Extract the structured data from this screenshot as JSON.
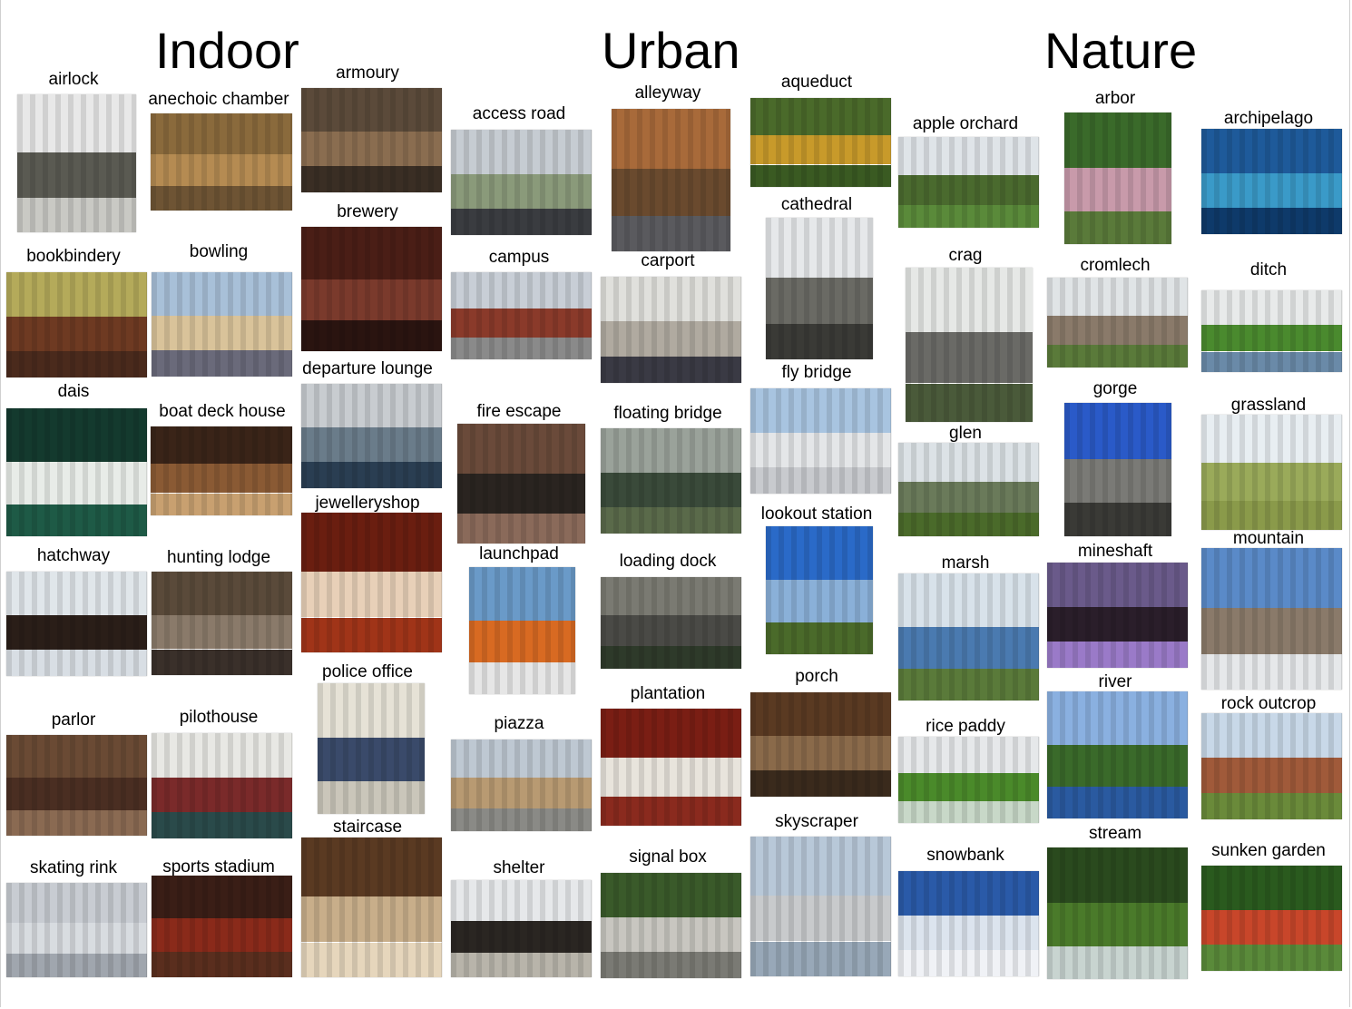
{
  "headings": [
    "Indoor",
    "Urban",
    "Nature"
  ],
  "categories": [
    {
      "label": "airlock",
      "colors": [
        "#e8e8e8",
        "#5a5a52",
        "#c9c9c4"
      ]
    },
    {
      "label": "anechoic chamber",
      "colors": [
        "#8a6a3c",
        "#b58b52",
        "#6e5434"
      ]
    },
    {
      "label": "armoury",
      "colors": [
        "#5b4a3a",
        "#8a6d50",
        "#3a2e24"
      ]
    },
    {
      "label": "bookbindery",
      "colors": [
        "#b4aa5a",
        "#6e3a22",
        "#4a2a1c"
      ]
    },
    {
      "label": "bowling",
      "colors": [
        "#a8c0d8",
        "#d9c39a",
        "#6a6a7a"
      ]
    },
    {
      "label": "brewery",
      "colors": [
        "#4a1e16",
        "#7a3a2c",
        "#2a1410"
      ]
    },
    {
      "label": "departure lounge",
      "colors": [
        "#c8ccd0",
        "#6a7c8a",
        "#2a3e52"
      ]
    },
    {
      "label": "dais",
      "colors": [
        "#143a2e",
        "#e8ece8",
        "#1e5a46"
      ]
    },
    {
      "label": "boat deck house",
      "colors": [
        "#3a2418",
        "#8a5a34",
        "#c8a070"
      ]
    },
    {
      "label": "jewelleryshop",
      "colors": [
        "#6a1e10",
        "#e8d0b8",
        "#a03418"
      ]
    },
    {
      "label": "hatchway",
      "colors": [
        "#e0e6ea",
        "#2a1e18",
        "#d8dee4"
      ]
    },
    {
      "label": "hunting lodge",
      "colors": [
        "#5a4a3a",
        "#8a7a6a",
        "#3a302a"
      ]
    },
    {
      "label": "police office",
      "colors": [
        "#e6e2d6",
        "#3a4a6a",
        "#cac6ba"
      ]
    },
    {
      "label": "parlor",
      "colors": [
        "#6a4a34",
        "#4a2e22",
        "#8a6a52"
      ]
    },
    {
      "label": "pilothouse",
      "colors": [
        "#e8e8e4",
        "#7a2a2a",
        "#2a4a4a"
      ]
    },
    {
      "label": "staircase",
      "colors": [
        "#5a3a22",
        "#c8ae8a",
        "#e6d6bc"
      ]
    },
    {
      "label": "skating rink",
      "colors": [
        "#c8ccd2",
        "#d8dce0",
        "#a0a6ae"
      ]
    },
    {
      "label": "sports stadium",
      "colors": [
        "#3a1e16",
        "#8a2a1a",
        "#5a2e1e"
      ]
    },
    {
      "label": "access road",
      "colors": [
        "#c6ccd2",
        "#8a9a7a",
        "#3a3c40"
      ]
    },
    {
      "label": "alleyway",
      "colors": [
        "#a86a3a",
        "#6a4a2e",
        "#5a5a5e"
      ]
    },
    {
      "label": "aqueduct",
      "colors": [
        "#4a6a2a",
        "#c89a2a",
        "#3a5a22"
      ]
    },
    {
      "label": "campus",
      "colors": [
        "#c8ced6",
        "#8a3a2a",
        "#8a8a8a"
      ]
    },
    {
      "label": "carport",
      "colors": [
        "#e0e0dc",
        "#b0aaa0",
        "#3a3a44"
      ]
    },
    {
      "label": "cathedral",
      "colors": [
        "#e6e8ea",
        "#6a6a64",
        "#3a3a36"
      ]
    },
    {
      "label": "fire escape",
      "colors": [
        "#6a4a3a",
        "#2a2420",
        "#8a6a5a"
      ]
    },
    {
      "label": "floating bridge",
      "colors": [
        "#9aa29a",
        "#3a4a3a",
        "#5a6a4a"
      ]
    },
    {
      "label": "fly bridge",
      "colors": [
        "#a8c4e0",
        "#e4e6e8",
        "#c8cace"
      ]
    },
    {
      "label": "launchpad",
      "colors": [
        "#6a9ac8",
        "#d86a22",
        "#e6e6e6"
      ]
    },
    {
      "label": "loading dock",
      "colors": [
        "#7a7a72",
        "#4a4a46",
        "#2e3a2a"
      ]
    },
    {
      "label": "lookout station",
      "colors": [
        "#2a6ac8",
        "#8ab0d8",
        "#4a6a2a"
      ]
    },
    {
      "label": "piazza",
      "colors": [
        "#bec8d2",
        "#b89a72",
        "#8a8a86"
      ]
    },
    {
      "label": "plantation",
      "colors": [
        "#7a1e14",
        "#e8e4dc",
        "#8a2a1e"
      ]
    },
    {
      "label": "porch",
      "colors": [
        "#5a3a22",
        "#8a6a4a",
        "#3a2a1c"
      ]
    },
    {
      "label": "shelter",
      "colors": [
        "#e6e8ea",
        "#2a2622",
        "#b8b4aa"
      ]
    },
    {
      "label": "signal box",
      "colors": [
        "#3a5a2a",
        "#c8c6c0",
        "#7a7a74"
      ]
    },
    {
      "label": "skyscraper",
      "colors": [
        "#b8c8d8",
        "#c8cacc",
        "#98a8b8"
      ]
    },
    {
      "label": "apple orchard",
      "colors": [
        "#dfe4e8",
        "#4a6a2e",
        "#5a8a3a"
      ]
    },
    {
      "label": "arbor",
      "colors": [
        "#3a6a2a",
        "#c89aaa",
        "#5a7a3a"
      ]
    },
    {
      "label": "archipelago",
      "colors": [
        "#1e5a9a",
        "#3a9ac8",
        "#0e3a6a"
      ]
    },
    {
      "label": "crag",
      "colors": [
        "#e6e8e6",
        "#6a6a66",
        "#4a5a3a"
      ]
    },
    {
      "label": "cromlech",
      "colors": [
        "#e0e4e6",
        "#8a7a6a",
        "#5a7a3a"
      ]
    },
    {
      "label": "ditch",
      "colors": [
        "#e8eaea",
        "#4a8a2e",
        "#6a8aa8"
      ]
    },
    {
      "label": "gorge",
      "colors": [
        "#2a5ac8",
        "#7a7a76",
        "#3a3a36"
      ]
    },
    {
      "label": "glen",
      "colors": [
        "#dce2e6",
        "#6a7a5a",
        "#4a6a2a"
      ]
    },
    {
      "label": "grassland",
      "colors": [
        "#e8eef2",
        "#9aaa5a",
        "#8a9a4a"
      ]
    },
    {
      "label": "mineshaft",
      "colors": [
        "#6a5a8a",
        "#2a1e2a",
        "#9a7ac8"
      ]
    },
    {
      "label": "marsh",
      "colors": [
        "#d8e2ea",
        "#4a7ab0",
        "#5a7a3a"
      ]
    },
    {
      "label": "mountain",
      "colors": [
        "#5a8ac8",
        "#8a7a6a",
        "#e6e8ea"
      ]
    },
    {
      "label": "river",
      "colors": [
        "#8ab0e0",
        "#3a6a2a",
        "#2a5aa0"
      ]
    },
    {
      "label": "rice paddy",
      "colors": [
        "#e6e8ea",
        "#4a8a2a",
        "#c8d8c8"
      ]
    },
    {
      "label": "rock outcrop",
      "colors": [
        "#c8d8e8",
        "#a05a3a",
        "#6a8a3a"
      ]
    },
    {
      "label": "snowbank",
      "colors": [
        "#2a5aa8",
        "#dce4ee",
        "#f0f2f6"
      ]
    },
    {
      "label": "stream",
      "colors": [
        "#2a4a1e",
        "#4a7a2a",
        "#c8d4d0"
      ]
    },
    {
      "label": "sunken garden",
      "colors": [
        "#2a5a1e",
        "#c8462a",
        "#5a8a3a"
      ]
    }
  ]
}
